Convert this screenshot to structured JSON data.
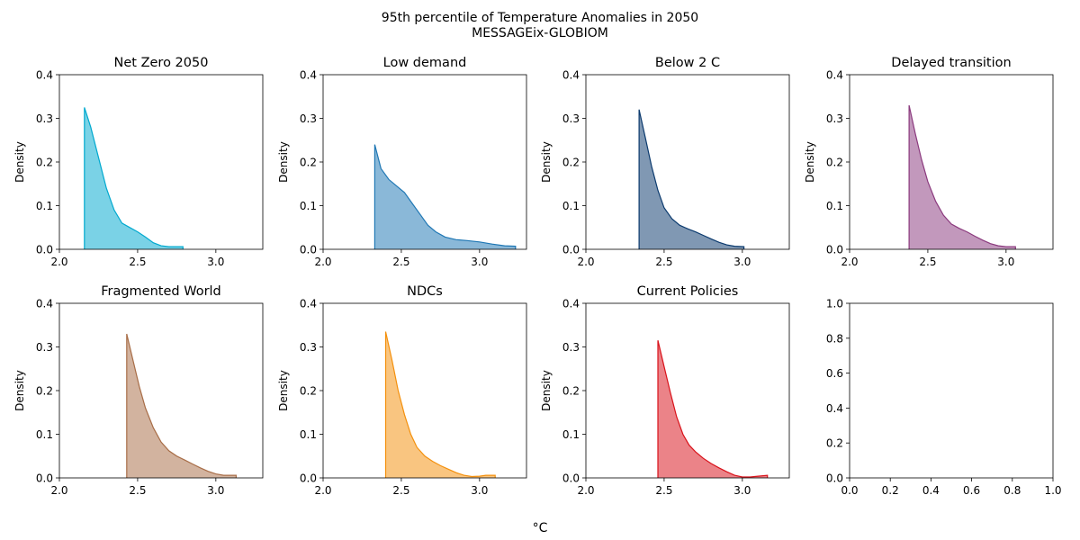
{
  "figure": {
    "title_line1": "95th percentile of Temperature Anomalies in 2050",
    "title_line2": "MESSAGEix-GLOBIOM",
    "xlabel": "°C"
  },
  "chart_data": [
    {
      "type": "area",
      "title": "Net Zero 2050",
      "ylabel": "Density",
      "color": "#00a9cf",
      "xlim": [
        2.0,
        3.3
      ],
      "ylim": [
        0,
        0.4
      ],
      "xticks": [
        "2.0",
        "2.5",
        "3.0"
      ],
      "yticks": [
        "0.0",
        "0.1",
        "0.2",
        "0.3",
        "0.4"
      ],
      "x": [
        2.16,
        2.2,
        2.25,
        2.3,
        2.35,
        2.4,
        2.45,
        2.5,
        2.55,
        2.6,
        2.65,
        2.7,
        2.75,
        2.79
      ],
      "y": [
        0.325,
        0.28,
        0.21,
        0.14,
        0.09,
        0.06,
        0.05,
        0.04,
        0.028,
        0.015,
        0.008,
        0.006,
        0.006,
        0.006
      ]
    },
    {
      "type": "area",
      "title": "Low demand",
      "ylabel": "Density",
      "color": "#1f77b4",
      "xlim": [
        2.0,
        3.3
      ],
      "ylim": [
        0,
        0.4
      ],
      "xticks": [
        "2.0",
        "2.5",
        "3.0"
      ],
      "yticks": [
        "0.0",
        "0.1",
        "0.2",
        "0.3",
        "0.4"
      ],
      "x": [
        2.33,
        2.37,
        2.42,
        2.47,
        2.52,
        2.57,
        2.62,
        2.67,
        2.72,
        2.78,
        2.85,
        2.92,
        3.0,
        3.08,
        3.16,
        3.23
      ],
      "y": [
        0.24,
        0.185,
        0.16,
        0.145,
        0.13,
        0.105,
        0.08,
        0.055,
        0.04,
        0.028,
        0.022,
        0.02,
        0.017,
        0.012,
        0.008,
        0.007
      ]
    },
    {
      "type": "area",
      "title": "Below 2 C",
      "ylabel": "Density",
      "color": "#0b3a6e",
      "xlim": [
        2.0,
        3.3
      ],
      "ylim": [
        0,
        0.4
      ],
      "xticks": [
        "2.0",
        "2.5",
        "3.0"
      ],
      "yticks": [
        "0.0",
        "0.1",
        "0.2",
        "0.3",
        "0.4"
      ],
      "x": [
        2.34,
        2.38,
        2.42,
        2.46,
        2.5,
        2.55,
        2.6,
        2.65,
        2.7,
        2.75,
        2.8,
        2.85,
        2.9,
        2.95,
        3.01
      ],
      "y": [
        0.32,
        0.255,
        0.19,
        0.135,
        0.095,
        0.07,
        0.055,
        0.047,
        0.04,
        0.032,
        0.024,
        0.016,
        0.01,
        0.007,
        0.006
      ]
    },
    {
      "type": "area",
      "title": "Delayed transition",
      "ylabel": "Density",
      "color": "#8b3a7e",
      "xlim": [
        2.0,
        3.3
      ],
      "ylim": [
        0,
        0.4
      ],
      "xticks": [
        "2.0",
        "2.5",
        "3.0"
      ],
      "yticks": [
        "0.0",
        "0.1",
        "0.2",
        "0.3",
        "0.4"
      ],
      "x": [
        2.38,
        2.42,
        2.46,
        2.5,
        2.55,
        2.6,
        2.65,
        2.7,
        2.75,
        2.8,
        2.85,
        2.9,
        2.95,
        3.0,
        3.06
      ],
      "y": [
        0.33,
        0.265,
        0.205,
        0.155,
        0.11,
        0.078,
        0.058,
        0.048,
        0.04,
        0.03,
        0.021,
        0.013,
        0.008,
        0.006,
        0.006
      ]
    },
    {
      "type": "area",
      "title": "Fragmented World",
      "ylabel": "Density",
      "color": "#a86d47",
      "xlim": [
        2.0,
        3.3
      ],
      "ylim": [
        0,
        0.4
      ],
      "xticks": [
        "2.0",
        "2.5",
        "3.0"
      ],
      "yticks": [
        "0.0",
        "0.1",
        "0.2",
        "0.3",
        "0.4"
      ],
      "x": [
        2.43,
        2.47,
        2.51,
        2.55,
        2.6,
        2.65,
        2.7,
        2.75,
        2.8,
        2.85,
        2.9,
        2.95,
        3.0,
        3.05,
        3.13
      ],
      "y": [
        0.33,
        0.27,
        0.21,
        0.16,
        0.115,
        0.082,
        0.062,
        0.05,
        0.041,
        0.032,
        0.023,
        0.015,
        0.009,
        0.006,
        0.006
      ]
    },
    {
      "type": "area",
      "title": "NDCs",
      "ylabel": "Density",
      "color": "#f4900c",
      "xlim": [
        2.0,
        3.3
      ],
      "ylim": [
        0,
        0.4
      ],
      "xticks": [
        "2.0",
        "2.5",
        "3.0"
      ],
      "yticks": [
        "0.0",
        "0.1",
        "0.2",
        "0.3",
        "0.4"
      ],
      "x": [
        2.4,
        2.44,
        2.48,
        2.52,
        2.56,
        2.6,
        2.65,
        2.7,
        2.75,
        2.8,
        2.85,
        2.9,
        2.95,
        3.0,
        3.04,
        3.1
      ],
      "y": [
        0.335,
        0.27,
        0.2,
        0.145,
        0.1,
        0.07,
        0.05,
        0.038,
        0.028,
        0.02,
        0.012,
        0.006,
        0.003,
        0.004,
        0.006,
        0.006
      ]
    },
    {
      "type": "area",
      "title": "Current Policies",
      "ylabel": "Density",
      "color": "#d9121a",
      "xlim": [
        2.0,
        3.3
      ],
      "ylim": [
        0,
        0.4
      ],
      "xticks": [
        "2.0",
        "2.5",
        "3.0"
      ],
      "yticks": [
        "0.0",
        "0.1",
        "0.2",
        "0.3",
        "0.4"
      ],
      "x": [
        2.46,
        2.5,
        2.54,
        2.58,
        2.62,
        2.66,
        2.7,
        2.75,
        2.8,
        2.85,
        2.9,
        2.95,
        3.0,
        3.05,
        3.1,
        3.16
      ],
      "y": [
        0.315,
        0.255,
        0.195,
        0.14,
        0.1,
        0.075,
        0.06,
        0.045,
        0.033,
        0.023,
        0.014,
        0.006,
        0.002,
        0.002,
        0.004,
        0.006
      ]
    },
    {
      "type": "area",
      "title": "",
      "ylabel": "",
      "color": "#000000",
      "xlim": [
        0,
        1
      ],
      "ylim": [
        0,
        1
      ],
      "xticks": [
        "0.0",
        "0.2",
        "0.4",
        "0.6",
        "0.8",
        "1.0"
      ],
      "yticks": [
        "0.0",
        "0.2",
        "0.4",
        "0.6",
        "0.8",
        "1.0"
      ],
      "x": [],
      "y": []
    }
  ]
}
